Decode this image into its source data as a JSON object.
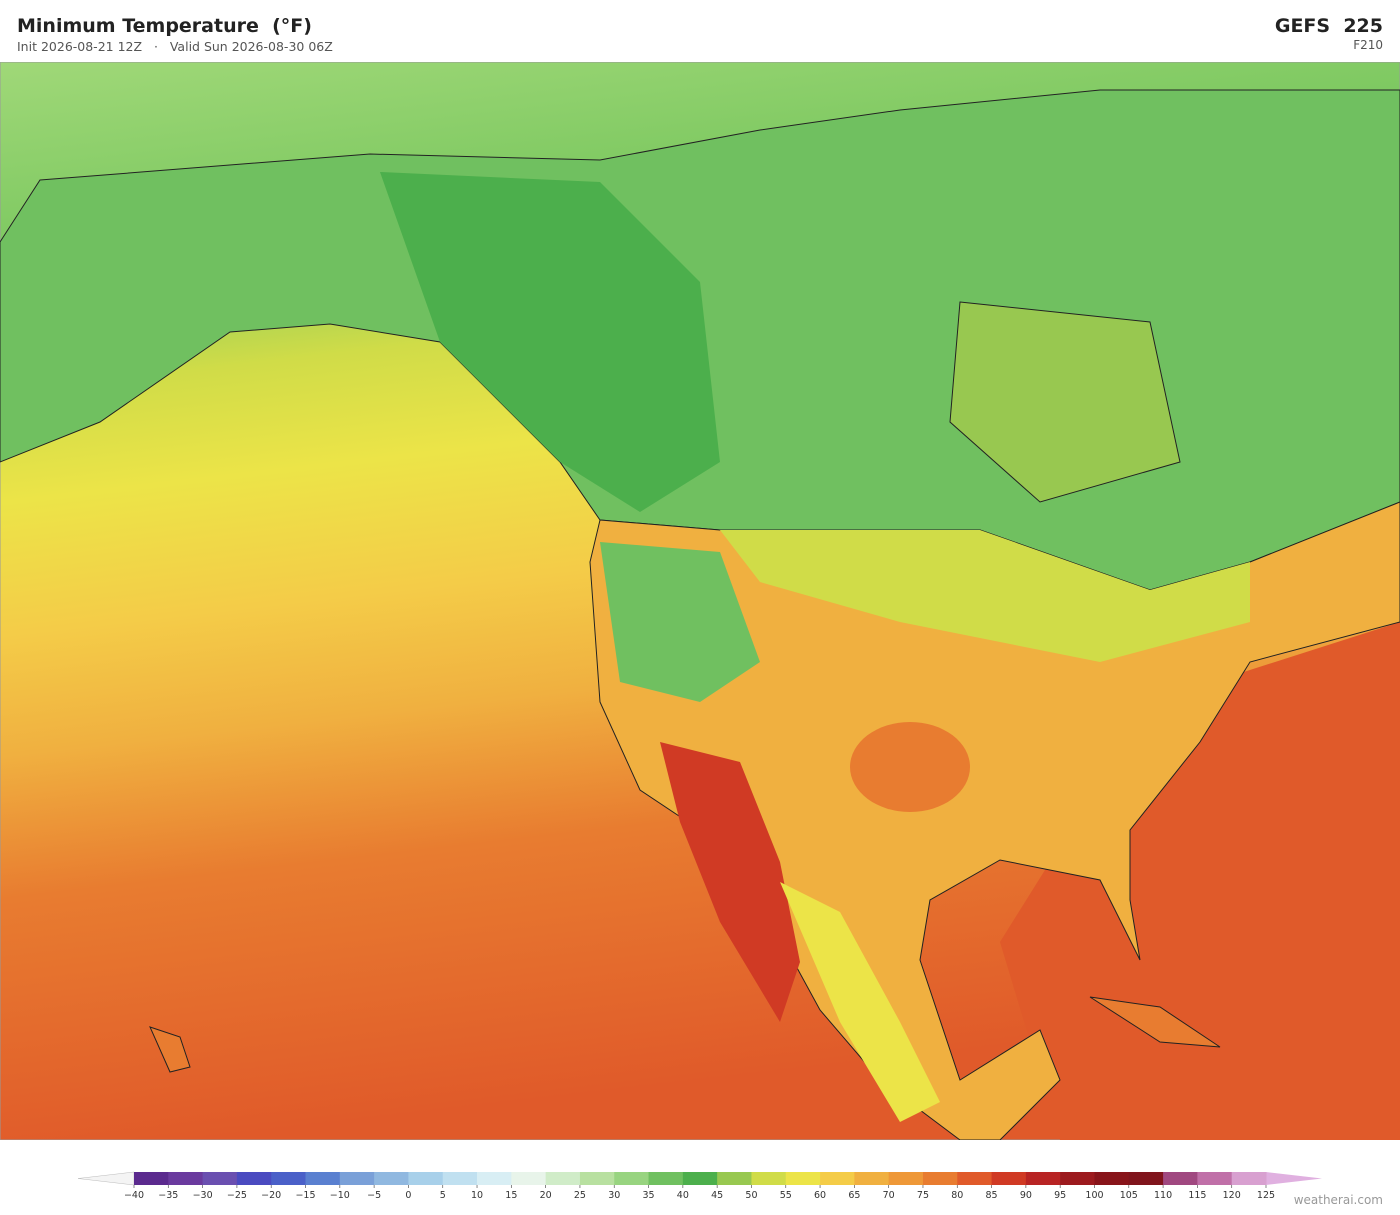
{
  "header": {
    "title": "Minimum Temperature  (°F)",
    "subtitle": "Init 2026-08-21 12Z   ·   Valid Sun 2026-08-30 06Z",
    "model": "GEFS  225",
    "forecast_hour": "F210"
  },
  "colorbar": {
    "ticks": [
      "−40",
      "−35",
      "−30",
      "−25",
      "−20",
      "−15",
      "−10",
      "−5",
      "0",
      "5",
      "10",
      "15",
      "20",
      "25",
      "30",
      "35",
      "40",
      "45",
      "50",
      "55",
      "60",
      "65",
      "70",
      "75",
      "80",
      "85",
      "90",
      "95",
      "100",
      "105",
      "110",
      "115",
      "120",
      "125"
    ],
    "colors": [
      "#5b2a8e",
      "#6a3a9e",
      "#6a4fb0",
      "#4a4ac0",
      "#4a60c8",
      "#5a80d0",
      "#7aa0d8",
      "#90b8e0",
      "#a8d0ea",
      "#c0e0f0",
      "#d8eef4",
      "#e8f4ea",
      "#d0ecc8",
      "#b8e0a0",
      "#98d480",
      "#70c060",
      "#4caf4c",
      "#98c850",
      "#d0dc48",
      "#ece448",
      "#f4cc48",
      "#f0b040",
      "#ee9838",
      "#e87c30",
      "#e05a2a",
      "#d03a24",
      "#b82424",
      "#9c1a1e",
      "#88141a",
      "#80141c",
      "#a04880",
      "#c070a8",
      "#d8a0d0"
    ],
    "under_color": "#f4f4f4",
    "over_color": "#e0b0e0"
  },
  "watermark": "weatherai.com"
}
